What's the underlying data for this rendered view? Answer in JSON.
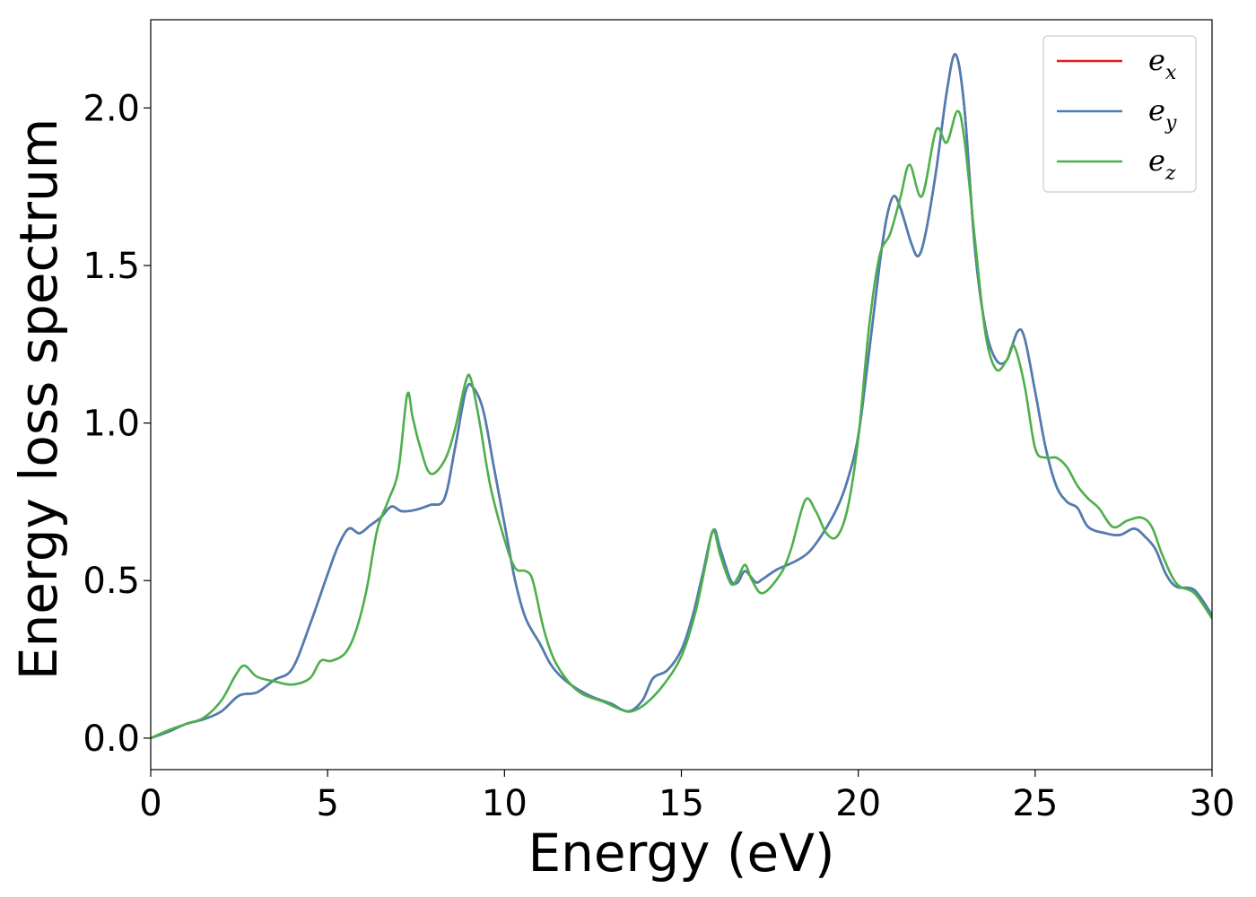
{
  "chart_data": {
    "type": "line",
    "xlabel": "Energy (eV)",
    "ylabel": "Energy loss spectrum",
    "xlim": [
      0,
      30
    ],
    "ylim": [
      -0.1,
      2.28
    ],
    "xticks": [
      0,
      5,
      10,
      15,
      20,
      25,
      30
    ],
    "xtick_labels": [
      "0",
      "5",
      "10",
      "15",
      "20",
      "25",
      "30"
    ],
    "yticks": [
      0.0,
      0.5,
      1.0,
      1.5,
      2.0
    ],
    "ytick_labels": [
      "0.0",
      "0.5",
      "1.0",
      "1.5",
      "2.0"
    ],
    "grid": false,
    "legend_position": "top-right",
    "series": [
      {
        "name": "e",
        "subscript": "x",
        "color": "#e41a1c",
        "points": [
          [
            0,
            0
          ],
          [
            0.5,
            0.02
          ],
          [
            1,
            0.045
          ],
          [
            1.5,
            0.06
          ],
          [
            2,
            0.085
          ],
          [
            2.5,
            0.135
          ],
          [
            3,
            0.145
          ],
          [
            3.5,
            0.185
          ],
          [
            4,
            0.22
          ],
          [
            4.5,
            0.36
          ],
          [
            5,
            0.52
          ],
          [
            5.3,
            0.61
          ],
          [
            5.6,
            0.665
          ],
          [
            5.9,
            0.65
          ],
          [
            6.2,
            0.675
          ],
          [
            6.5,
            0.7
          ],
          [
            6.8,
            0.735
          ],
          [
            7.1,
            0.72
          ],
          [
            7.5,
            0.725
          ],
          [
            7.9,
            0.74
          ],
          [
            8.3,
            0.76
          ],
          [
            8.6,
            0.92
          ],
          [
            8.9,
            1.1
          ],
          [
            9.1,
            1.115
          ],
          [
            9.4,
            1.04
          ],
          [
            9.7,
            0.86
          ],
          [
            10,
            0.68
          ],
          [
            10.3,
            0.5
          ],
          [
            10.6,
            0.38
          ],
          [
            11,
            0.3
          ],
          [
            11.3,
            0.235
          ],
          [
            11.6,
            0.195
          ],
          [
            12,
            0.16
          ],
          [
            12.5,
            0.13
          ],
          [
            13,
            0.11
          ],
          [
            13.5,
            0.085
          ],
          [
            13.9,
            0.12
          ],
          [
            14.2,
            0.19
          ],
          [
            14.6,
            0.215
          ],
          [
            15,
            0.28
          ],
          [
            15.3,
            0.38
          ],
          [
            15.6,
            0.52
          ],
          [
            15.9,
            0.66
          ],
          [
            16.1,
            0.6
          ],
          [
            16.4,
            0.5
          ],
          [
            16.6,
            0.495
          ],
          [
            16.8,
            0.53
          ],
          [
            17.1,
            0.495
          ],
          [
            17.3,
            0.505
          ],
          [
            17.7,
            0.535
          ],
          [
            18.2,
            0.56
          ],
          [
            18.6,
            0.59
          ],
          [
            19,
            0.65
          ],
          [
            19.4,
            0.73
          ],
          [
            19.7,
            0.82
          ],
          [
            20,
            0.96
          ],
          [
            20.3,
            1.22
          ],
          [
            20.6,
            1.5
          ],
          [
            20.8,
            1.65
          ],
          [
            21,
            1.72
          ],
          [
            21.2,
            1.68
          ],
          [
            21.5,
            1.57
          ],
          [
            21.7,
            1.53
          ],
          [
            21.9,
            1.6
          ],
          [
            22.2,
            1.8
          ],
          [
            22.5,
            2.05
          ],
          [
            22.75,
            2.17
          ],
          [
            23,
            2.0
          ],
          [
            23.3,
            1.55
          ],
          [
            23.6,
            1.3
          ],
          [
            23.9,
            1.2
          ],
          [
            24.2,
            1.2
          ],
          [
            24.5,
            1.29
          ],
          [
            24.7,
            1.27
          ],
          [
            25,
            1.1
          ],
          [
            25.3,
            0.92
          ],
          [
            25.6,
            0.8
          ],
          [
            25.9,
            0.75
          ],
          [
            26.2,
            0.73
          ],
          [
            26.5,
            0.67
          ],
          [
            27,
            0.65
          ],
          [
            27.4,
            0.645
          ],
          [
            27.8,
            0.665
          ],
          [
            28.1,
            0.64
          ],
          [
            28.4,
            0.6
          ],
          [
            28.7,
            0.52
          ],
          [
            29,
            0.48
          ],
          [
            29.5,
            0.47
          ],
          [
            30,
            0.39
          ]
        ]
      },
      {
        "name": "e",
        "subscript": "y",
        "color": "#4a7fb5",
        "points": [
          [
            0,
            0
          ],
          [
            0.5,
            0.02
          ],
          [
            1,
            0.045
          ],
          [
            1.5,
            0.06
          ],
          [
            2,
            0.085
          ],
          [
            2.5,
            0.135
          ],
          [
            3,
            0.145
          ],
          [
            3.5,
            0.185
          ],
          [
            4,
            0.22
          ],
          [
            4.5,
            0.36
          ],
          [
            5,
            0.52
          ],
          [
            5.3,
            0.61
          ],
          [
            5.6,
            0.665
          ],
          [
            5.9,
            0.65
          ],
          [
            6.2,
            0.675
          ],
          [
            6.5,
            0.7
          ],
          [
            6.8,
            0.735
          ],
          [
            7.1,
            0.72
          ],
          [
            7.5,
            0.725
          ],
          [
            7.9,
            0.74
          ],
          [
            8.3,
            0.76
          ],
          [
            8.6,
            0.92
          ],
          [
            8.9,
            1.1
          ],
          [
            9.1,
            1.115
          ],
          [
            9.4,
            1.04
          ],
          [
            9.7,
            0.86
          ],
          [
            10,
            0.68
          ],
          [
            10.3,
            0.5
          ],
          [
            10.6,
            0.38
          ],
          [
            11,
            0.3
          ],
          [
            11.3,
            0.235
          ],
          [
            11.6,
            0.195
          ],
          [
            12,
            0.16
          ],
          [
            12.5,
            0.13
          ],
          [
            13,
            0.11
          ],
          [
            13.5,
            0.085
          ],
          [
            13.9,
            0.12
          ],
          [
            14.2,
            0.19
          ],
          [
            14.6,
            0.215
          ],
          [
            15,
            0.28
          ],
          [
            15.3,
            0.38
          ],
          [
            15.6,
            0.52
          ],
          [
            15.9,
            0.66
          ],
          [
            16.1,
            0.6
          ],
          [
            16.4,
            0.5
          ],
          [
            16.6,
            0.495
          ],
          [
            16.8,
            0.53
          ],
          [
            17.1,
            0.495
          ],
          [
            17.3,
            0.505
          ],
          [
            17.7,
            0.535
          ],
          [
            18.2,
            0.56
          ],
          [
            18.6,
            0.59
          ],
          [
            19,
            0.65
          ],
          [
            19.4,
            0.73
          ],
          [
            19.7,
            0.82
          ],
          [
            20,
            0.96
          ],
          [
            20.3,
            1.22
          ],
          [
            20.6,
            1.5
          ],
          [
            20.8,
            1.65
          ],
          [
            21,
            1.72
          ],
          [
            21.2,
            1.68
          ],
          [
            21.5,
            1.57
          ],
          [
            21.7,
            1.53
          ],
          [
            21.9,
            1.6
          ],
          [
            22.2,
            1.8
          ],
          [
            22.5,
            2.05
          ],
          [
            22.75,
            2.17
          ],
          [
            23,
            2.0
          ],
          [
            23.3,
            1.55
          ],
          [
            23.6,
            1.3
          ],
          [
            23.9,
            1.2
          ],
          [
            24.2,
            1.2
          ],
          [
            24.5,
            1.29
          ],
          [
            24.7,
            1.27
          ],
          [
            25,
            1.1
          ],
          [
            25.3,
            0.92
          ],
          [
            25.6,
            0.8
          ],
          [
            25.9,
            0.75
          ],
          [
            26.2,
            0.73
          ],
          [
            26.5,
            0.67
          ],
          [
            27,
            0.65
          ],
          [
            27.4,
            0.645
          ],
          [
            27.8,
            0.665
          ],
          [
            28.1,
            0.64
          ],
          [
            28.4,
            0.6
          ],
          [
            28.7,
            0.52
          ],
          [
            29,
            0.48
          ],
          [
            29.5,
            0.47
          ],
          [
            30,
            0.39
          ]
        ]
      },
      {
        "name": "e",
        "subscript": "z",
        "color": "#4daf4a",
        "points": [
          [
            0,
            0
          ],
          [
            0.5,
            0.025
          ],
          [
            1,
            0.045
          ],
          [
            1.5,
            0.065
          ],
          [
            2,
            0.12
          ],
          [
            2.4,
            0.2
          ],
          [
            2.65,
            0.23
          ],
          [
            3,
            0.195
          ],
          [
            3.5,
            0.18
          ],
          [
            4,
            0.17
          ],
          [
            4.5,
            0.19
          ],
          [
            4.8,
            0.245
          ],
          [
            5.1,
            0.245
          ],
          [
            5.5,
            0.27
          ],
          [
            5.8,
            0.34
          ],
          [
            6.1,
            0.47
          ],
          [
            6.4,
            0.66
          ],
          [
            6.7,
            0.75
          ],
          [
            7,
            0.85
          ],
          [
            7.25,
            1.09
          ],
          [
            7.4,
            1.02
          ],
          [
            7.6,
            0.93
          ],
          [
            7.9,
            0.84
          ],
          [
            8.3,
            0.88
          ],
          [
            8.6,
            0.98
          ],
          [
            8.9,
            1.13
          ],
          [
            9.05,
            1.14
          ],
          [
            9.3,
            1.0
          ],
          [
            9.6,
            0.8
          ],
          [
            10,
            0.63
          ],
          [
            10.3,
            0.54
          ],
          [
            10.6,
            0.53
          ],
          [
            10.8,
            0.5
          ],
          [
            11.1,
            0.35
          ],
          [
            11.4,
            0.25
          ],
          [
            11.8,
            0.18
          ],
          [
            12.2,
            0.14
          ],
          [
            12.8,
            0.115
          ],
          [
            13.3,
            0.09
          ],
          [
            13.6,
            0.085
          ],
          [
            14,
            0.11
          ],
          [
            14.5,
            0.17
          ],
          [
            15,
            0.26
          ],
          [
            15.4,
            0.4
          ],
          [
            15.7,
            0.56
          ],
          [
            15.9,
            0.66
          ],
          [
            16.1,
            0.58
          ],
          [
            16.4,
            0.49
          ],
          [
            16.6,
            0.51
          ],
          [
            16.8,
            0.55
          ],
          [
            17,
            0.5
          ],
          [
            17.3,
            0.46
          ],
          [
            17.8,
            0.52
          ],
          [
            18.1,
            0.6
          ],
          [
            18.5,
            0.755
          ],
          [
            18.8,
            0.72
          ],
          [
            19.1,
            0.65
          ],
          [
            19.4,
            0.64
          ],
          [
            19.7,
            0.73
          ],
          [
            20,
            0.95
          ],
          [
            20.3,
            1.3
          ],
          [
            20.6,
            1.53
          ],
          [
            20.9,
            1.6
          ],
          [
            21.2,
            1.72
          ],
          [
            21.45,
            1.82
          ],
          [
            21.8,
            1.72
          ],
          [
            22.2,
            1.93
          ],
          [
            22.5,
            1.89
          ],
          [
            22.8,
            1.99
          ],
          [
            23,
            1.9
          ],
          [
            23.3,
            1.58
          ],
          [
            23.6,
            1.28
          ],
          [
            23.9,
            1.17
          ],
          [
            24.2,
            1.2
          ],
          [
            24.4,
            1.245
          ],
          [
            24.7,
            1.12
          ],
          [
            25,
            0.92
          ],
          [
            25.3,
            0.89
          ],
          [
            25.6,
            0.89
          ],
          [
            25.9,
            0.86
          ],
          [
            26.2,
            0.8
          ],
          [
            26.5,
            0.76
          ],
          [
            26.8,
            0.73
          ],
          [
            27.2,
            0.67
          ],
          [
            27.6,
            0.69
          ],
          [
            28,
            0.7
          ],
          [
            28.3,
            0.67
          ],
          [
            28.6,
            0.58
          ],
          [
            29,
            0.49
          ],
          [
            29.5,
            0.46
          ],
          [
            30,
            0.38
          ]
        ]
      }
    ]
  }
}
